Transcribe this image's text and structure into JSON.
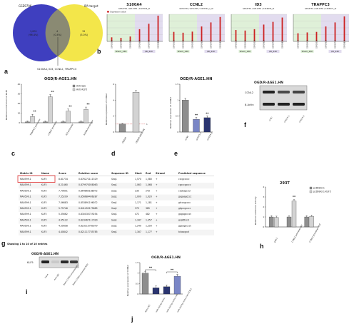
{
  "panel_labels": {
    "a": "a",
    "b": "b",
    "c": "c",
    "d": "d",
    "e": "e",
    "f": "f",
    "g": "g",
    "h": "h",
    "i": "i",
    "j": "j"
  },
  "venn": {
    "left_title": "GSE9796",
    "right_title": "IPA target",
    "left_count": "1,001",
    "left_pct": "(96.4%)",
    "middle_count": "4",
    "middle_pct": "(0.4%)",
    "right_count": "15",
    "right_pct": "(3.0%)",
    "caption": "S100A4, ID3, CCNL2, TRAPPC3",
    "colors": {
      "left": "#3f3fbf",
      "right": "#f3e64a",
      "overlap": "#8a8a73"
    }
  },
  "expression_panels": [
    {
      "title": "S100A4",
      "probe": "GDS3734 / GPL1355 / 1424542_at",
      "legend": "Expression value",
      "groups": [
        "Sham_24h",
        "I/R_24h"
      ]
    },
    {
      "title": "CCNL2",
      "probe": "GDS3734 / GPL1355 / 1453742_x_at",
      "groups": [
        "Sham_24h",
        "I/R_24h"
      ]
    },
    {
      "title": "ID3",
      "probe": "GDS3734 / GPL1355 / 1416630_at",
      "groups": [
        "Sham_24h",
        "I/R_24h"
      ]
    },
    {
      "title": "TRAPPC3",
      "probe": "GDS3734 / GPL1355 / 1455971_at",
      "groups": [
        "Sham_24h",
        "I/R_24h"
      ]
    }
  ],
  "c_title": "OGD/R-AGE1.HN",
  "c_legend": [
    "Anti-IgG",
    "Anti-KLF5"
  ],
  "c_ylabel": "Relative enrichment of KLF5",
  "c_categories": [
    "TRAPPC3 promoter",
    "CCNL2 promoter",
    "ID3 promoter",
    "S100A4 promoter"
  ],
  "d_ylabel": "Relative expression of CCNL2",
  "d_categories": [
    "OGD/R",
    "OGD/R-AGE1.HN"
  ],
  "e_title": "OGD/R-AGE1.HN",
  "e_ylabel": "Relative expression of CCNL2",
  "e_categories": [
    "si-NC",
    "si-KLF5-1",
    "si-KLF5-2"
  ],
  "f_title": "OGD/R-AGE1.HN",
  "f_rows": [
    "CCNL2",
    "β-Actin"
  ],
  "f_lanes": [
    "si-NC",
    "si-KLF5-1",
    "si-KLF5-2"
  ],
  "g_headers": [
    "Matrix ID",
    "Name",
    "Score",
    "Relative score",
    "Sequence ID",
    "Start",
    "End",
    "Strand",
    "Predicted sequence"
  ],
  "g_rows": [
    [
      "MA0599.1",
      "KLF5",
      "8.81734",
      "0.876272111529",
      "Seq1",
      "1,570",
      "1,580",
      "+",
      "cccgccccc"
    ],
    [
      "MA0599.1",
      "KLF5",
      "8.21460",
      "0.879970058063",
      "Seq1",
      "1,063",
      "1,068",
      "+",
      "cgcccgcccc"
    ],
    [
      "MA0599.1",
      "KLF5",
      "7.70601",
      "0.864865188072",
      "Seq1",
      "235",
      "243",
      "+",
      "cacbagcccl"
    ],
    [
      "MA0599.1",
      "KLF5",
      "7.55299",
      "0.856684406287",
      "Seq1",
      "1,009",
      "1,020",
      "+",
      "gagaagcccc"
    ],
    [
      "MA0599.1",
      "KLF5",
      "7.06683",
      "0.853891196072",
      "Seq1",
      "1,171",
      "1,181",
      "+",
      "gtcccgcccc"
    ],
    [
      "MA0599.1",
      "KLF5",
      "5.75746",
      "0.841452175685",
      "Seq1",
      "375",
      "385",
      "+",
      "gtgccgcccc"
    ],
    [
      "MA0599.1",
      "KLF5",
      "5.35662",
      "0.830035729254",
      "Seq1",
      "472",
      "482",
      "+",
      "gagagcccct"
    ],
    [
      "MA0599.1",
      "KLF5",
      "4.95122",
      "0.823467117330",
      "Seq1",
      "1,347",
      "1,357",
      "+",
      "gcgtttcccl"
    ],
    [
      "MA0599.1",
      "KLF5",
      "4.55658",
      "0.823115760379",
      "Seq1",
      "1,240",
      "1,250",
      "+",
      "ggaagcccct"
    ],
    [
      "MA0599.1",
      "KLF5",
      "4.40842",
      "0.821117735785",
      "Seq1",
      "1,167",
      "1,177",
      "+",
      "tcbacgcct"
    ]
  ],
  "g_footer": "Showing 1 to 10 of 10 entries",
  "h_title": "293T",
  "h_ylabel": "Relative luciferase activity",
  "h_legend": [
    "pcDNA3.1",
    "pcDNA3.1-KLF5"
  ],
  "h_categories": [
    "pGL3",
    "CCNL2 promoter-WT",
    "CCNL2 promoter-MUT"
  ],
  "i_title": "OGD/R-AGE1.HN",
  "i_row": "KLF5",
  "i_lanes": [
    "Input",
    "Anti-IgG",
    "Biotin-CCNL2 promoter-WT",
    "Biotin-CCNL2 promoter-MUT"
  ],
  "j_title": "OGD/R-AGE1.HN",
  "j_ylabel": "Relative expression of CCNL2",
  "j_categories": [
    "Mimic-NC",
    "miR-150-5p mimic",
    "miR-150-5p mimic+oe-NC",
    "miR-150-5p mimic+oe-CCNL2"
  ],
  "sig": "**",
  "colors": {
    "bar_grey": "#8e8e8e",
    "bar_light": "#d3d3d3",
    "bar_navy": "#2a3470",
    "bar_blue": "#7a86c6",
    "chart_red": "#cc2222",
    "sham_bg": "#dff0d8",
    "ir_bg": "#e2dcef"
  },
  "chart_data": [
    {
      "type": "bar",
      "title": "S100A4",
      "categories": [
        "1",
        "2",
        "3",
        "4",
        "5",
        "6"
      ],
      "values": [
        0.15,
        0.13,
        0.18,
        0.45,
        0.65,
        0.95
      ],
      "ylim": [
        0,
        1
      ]
    },
    {
      "type": "bar",
      "title": "CCNL2",
      "categories": [
        "1",
        "2",
        "3",
        "4",
        "5",
        "6"
      ],
      "values": [
        0.35,
        0.32,
        0.36,
        0.55,
        0.7,
        0.9
      ],
      "ylim": [
        0,
        1
      ]
    },
    {
      "type": "bar",
      "title": "ID3",
      "categories": [
        "1",
        "2",
        "3",
        "4",
        "5",
        "6"
      ],
      "values": [
        0.42,
        0.4,
        0.45,
        0.62,
        0.72,
        0.88
      ],
      "ylim": [
        0,
        1
      ]
    },
    {
      "type": "bar",
      "title": "TRAPPC3",
      "categories": [
        "1",
        "2",
        "3",
        "4",
        "5",
        "6"
      ],
      "values": [
        0.3,
        0.33,
        0.35,
        0.55,
        0.7,
        0.92
      ],
      "ylim": [
        0,
        1
      ]
    },
    {
      "type": "bar",
      "categories": [
        "TRAPPC3 promoter",
        "CCNL2 promoter",
        "ID3 promoter",
        "S100A4 promoter"
      ],
      "series": [
        {
          "name": "Anti-IgG",
          "values": [
            1.0,
            1.0,
            1.0,
            1.0
          ]
        },
        {
          "name": "Anti-KLF5",
          "values": [
            6.5,
            27,
            12,
            14
          ]
        }
      ],
      "ylim": [
        0,
        40
      ]
    },
    {
      "type": "bar",
      "categories": [
        "OGD/R",
        "OGD/R-AGE1.HN"
      ],
      "values": [
        1.0,
        5.0
      ],
      "ylim": [
        0,
        6
      ]
    },
    {
      "type": "bar",
      "categories": [
        "si-NC",
        "si-KLF5-1",
        "si-KLF5-2"
      ],
      "values": [
        1.0,
        0.4,
        0.45
      ],
      "ylim": [
        0,
        1.5
      ]
    },
    {
      "type": "bar",
      "categories": [
        "pGL3",
        "CCNL2 promoter-WT",
        "CCNL2 promoter-MUT"
      ],
      "series": [
        {
          "name": "pcDNA3.1",
          "values": [
            1.0,
            1.0,
            1.0
          ]
        },
        {
          "name": "pcDNA3.1-KLF5",
          "values": [
            0.95,
            2.6,
            1.05
          ]
        }
      ],
      "ylim": [
        0,
        4
      ]
    },
    {
      "type": "bar",
      "categories": [
        "Mimic-NC",
        "miR-150-5p mimic",
        "miR-150-5p mimic+oe-NC",
        "miR-150-5p mimic+oe-CCNL2"
      ],
      "values": [
        1.0,
        0.3,
        0.35,
        0.85
      ],
      "ylim": [
        0,
        1.5
      ]
    }
  ]
}
